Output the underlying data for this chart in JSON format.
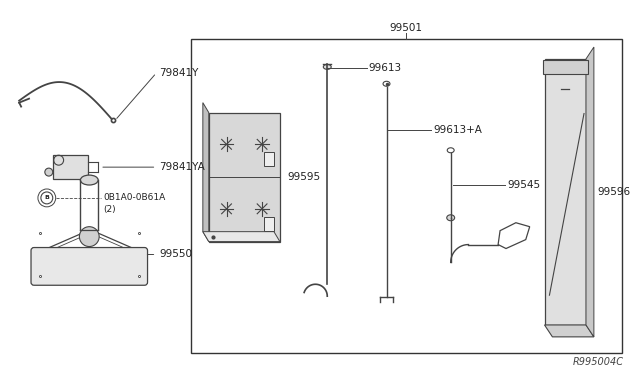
{
  "bg_color": "#ffffff",
  "line_color": "#444444",
  "fig_width": 6.4,
  "fig_height": 3.72,
  "title_code": "R995004C",
  "part_99501_label": "99501",
  "part_99613_label": "99613",
  "part_99613A_label": "99613+A",
  "part_99595_label": "99595",
  "part_99545_label": "99545",
  "part_99596_label": "99596",
  "part_99550_label": "99550",
  "part_79841Y_label": "79841Y",
  "part_79841YA_label": "79841YA",
  "part_0B1A0_label": "0B1A0-0B61A",
  "part_0B1A0_qty": "(2)"
}
